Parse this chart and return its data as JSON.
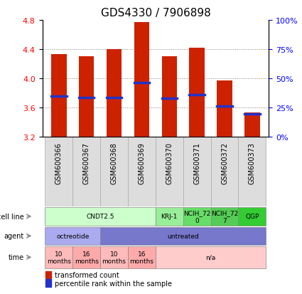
{
  "title": "GDS4330 / 7906898",
  "samples": [
    "GSM600366",
    "GSM600367",
    "GSM600368",
    "GSM600369",
    "GSM600370",
    "GSM600371",
    "GSM600372",
    "GSM600373"
  ],
  "bar_tops": [
    4.33,
    4.3,
    4.4,
    4.77,
    4.3,
    4.42,
    3.97,
    3.53
  ],
  "bar_bottoms": [
    3.2,
    3.2,
    3.2,
    3.2,
    3.2,
    3.2,
    3.2,
    3.2
  ],
  "blue_marks": [
    3.76,
    3.74,
    3.74,
    3.94,
    3.73,
    3.78,
    3.62,
    3.51
  ],
  "ylim": [
    3.2,
    4.8
  ],
  "yticks": [
    3.2,
    3.6,
    4.0,
    4.4,
    4.8
  ],
  "right_yticks": [
    0,
    25,
    50,
    75,
    100
  ],
  "right_ylabels": [
    "0%",
    "25%",
    "50%",
    "75%",
    "100%"
  ],
  "bar_color": "#CC2200",
  "blue_color": "#2233CC",
  "cell_line_groups": [
    {
      "label": "CNDT2.5",
      "start": 0,
      "end": 4,
      "color": "#CCFFCC"
    },
    {
      "label": "KRJ-1",
      "start": 4,
      "end": 5,
      "color": "#99EE99"
    },
    {
      "label": "NCIH_72\n0",
      "start": 5,
      "end": 6,
      "color": "#66DD66"
    },
    {
      "label": "NCIH_72\n7",
      "start": 6,
      "end": 7,
      "color": "#55CC55"
    },
    {
      "label": "QGP",
      "start": 7,
      "end": 8,
      "color": "#33CC33"
    }
  ],
  "agent_groups": [
    {
      "label": "octreotide",
      "start": 0,
      "end": 2,
      "color": "#AAAAEE"
    },
    {
      "label": "untreated",
      "start": 2,
      "end": 8,
      "color": "#7777CC"
    }
  ],
  "time_groups": [
    {
      "label": "10\nmonths",
      "start": 0,
      "end": 1,
      "color": "#FFBBBB"
    },
    {
      "label": "16\nmonths",
      "start": 1,
      "end": 2,
      "color": "#FFAAAA"
    },
    {
      "label": "10\nmonths",
      "start": 2,
      "end": 3,
      "color": "#FFBBBB"
    },
    {
      "label": "16\nmonths",
      "start": 3,
      "end": 4,
      "color": "#FFAAAA"
    },
    {
      "label": "n/a",
      "start": 4,
      "end": 8,
      "color": "#FFCCCC"
    }
  ],
  "row_labels": [
    "cell line",
    "agent",
    "time"
  ],
  "legend_items": [
    {
      "label": "transformed count",
      "color": "#CC2200"
    },
    {
      "label": "percentile rank within the sample",
      "color": "#2233CC"
    }
  ]
}
